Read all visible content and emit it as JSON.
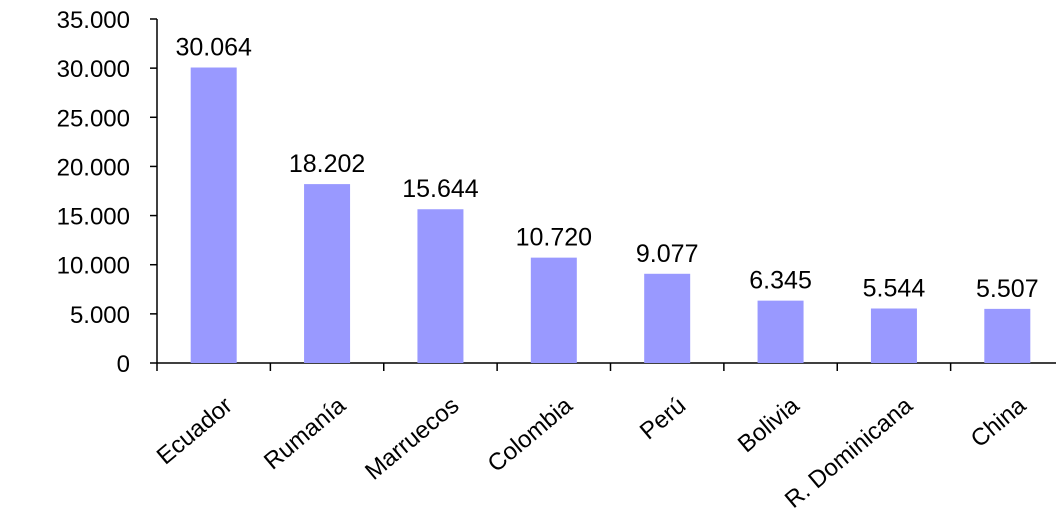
{
  "chart_data": {
    "type": "bar",
    "categories": [
      "Ecuador",
      "Rumanía",
      "Marruecos",
      "Colombia",
      "Perú",
      "Bolivia",
      "R. Dominicana",
      "China"
    ],
    "values": [
      30064,
      18202,
      15644,
      10720,
      9077,
      6345,
      5544,
      5507
    ],
    "value_labels": [
      "30.064",
      "18.202",
      "15.644",
      "10.720",
      "9.077",
      "6.345",
      "5.544",
      "5.507"
    ],
    "ylim": [
      0,
      35000
    ],
    "yticks": [
      0,
      5000,
      10000,
      15000,
      20000,
      25000,
      30000,
      35000
    ],
    "ytick_labels": [
      "0",
      "5.000",
      "10.000",
      "15.000",
      "20.000",
      "25.000",
      "30.000",
      "35.000"
    ],
    "title": "",
    "xlabel": "",
    "ylabel": "",
    "grid": false,
    "bar_color": "#9999ff"
  }
}
